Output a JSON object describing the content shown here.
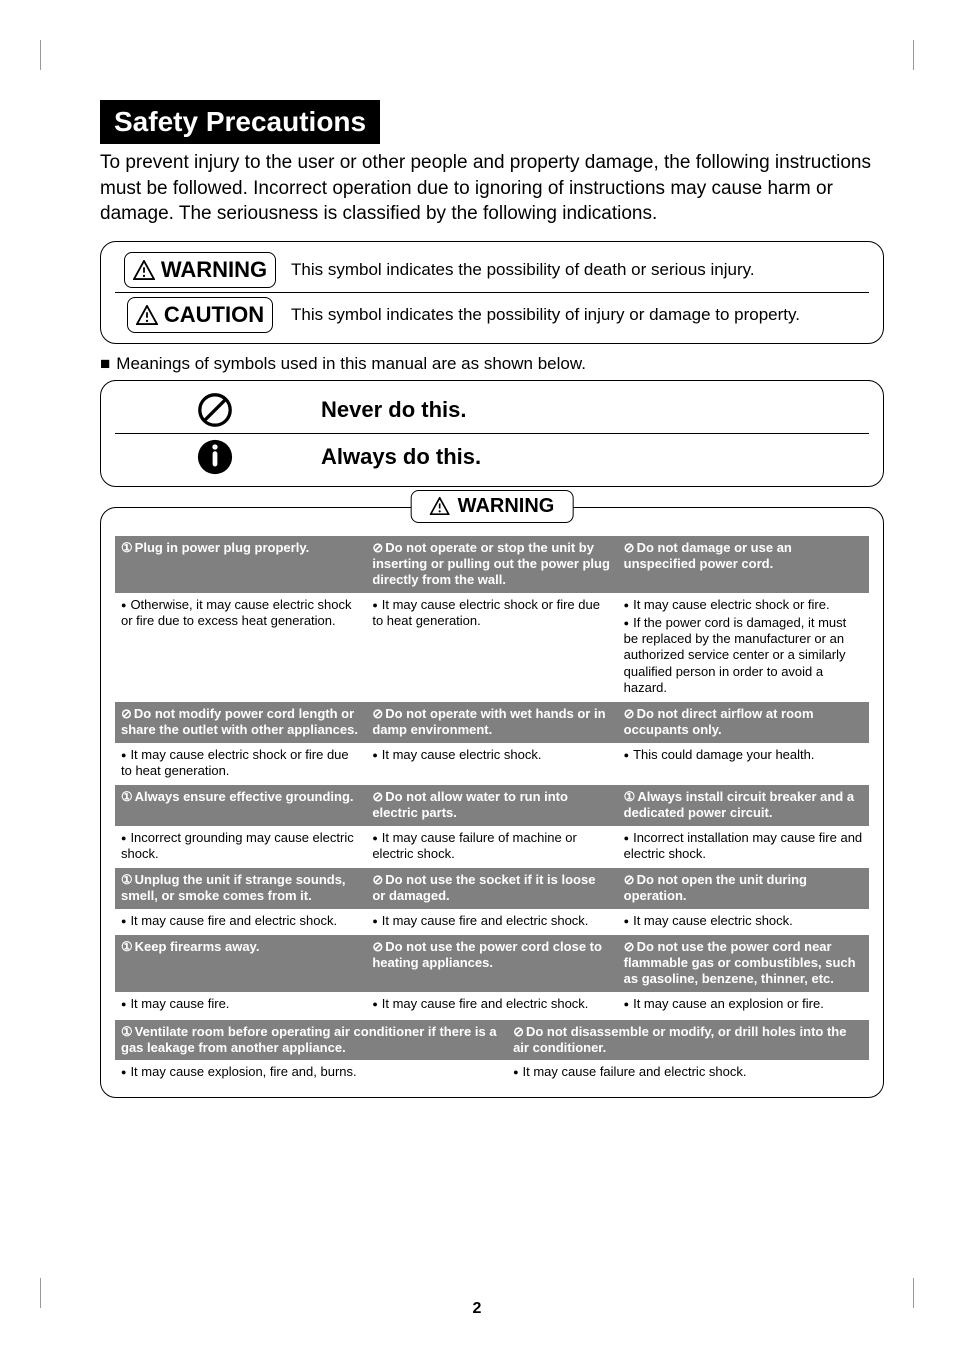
{
  "title": "Safety Precautions",
  "intro": "To prevent injury to the user or other people and property damage, the following instructions must be followed. Incorrect operation due to ignoring of instructions may cause harm or damage. The seriousness is classified by the following indications.",
  "labels": {
    "warning": "WARNING",
    "caution": "CAUTION",
    "warning_desc": "This symbol indicates the possibility of death or serious injury.",
    "caution_desc": "This symbol indicates the possibility of injury or damage to property."
  },
  "meanings": "Meanings of symbols used in this manual are as shown below.",
  "instr": {
    "never": "Never do this.",
    "always": "Always do this."
  },
  "warning_header": "WARNING",
  "prohibit_sym": "⊘",
  "must_sym": "①",
  "rows": [
    {
      "h": [
        "Plug in power plug properly.",
        "Do not operate or stop the unit by inserting or pulling out the power plug directly from the wall.",
        "Do not damage or use an unspecified power cord."
      ],
      "t": [
        "must",
        "prohibit",
        "prohibit"
      ],
      "b": [
        "Otherwise, it may cause electric shock or fire due to excess heat generation.",
        "It may cause electric shock or fire due to heat generation.",
        "It may cause electric shock or fire.|If the power cord is damaged, it must be replaced by the manufacturer or an authorized service center or a similarly qualified person in order to avoid a hazard."
      ]
    },
    {
      "h": [
        "Do not modify power cord length or share the outlet with other appliances.",
        "Do not operate with wet hands or in damp environment.",
        "Do not direct airflow at room occupants only."
      ],
      "t": [
        "prohibit",
        "prohibit",
        "prohibit"
      ],
      "b": [
        "It may cause electric shock or fire due to heat generation.",
        "It may cause electric shock.",
        "This could damage your health."
      ]
    },
    {
      "h": [
        "Always ensure effective grounding.",
        "Do not allow water to run into electric parts.",
        "Always install circuit breaker and a dedicated power circuit."
      ],
      "t": [
        "must",
        "prohibit",
        "must"
      ],
      "b": [
        "Incorrect grounding may cause electric shock.",
        "It may cause failure of machine or electric shock.",
        "Incorrect installation may cause fire and electric shock."
      ]
    },
    {
      "h": [
        "Unplug the unit if strange sounds, smell, or smoke comes from it.",
        "Do not use the socket if it is loose or damaged.",
        "Do not open the unit during operation."
      ],
      "t": [
        "must",
        "prohibit",
        "prohibit"
      ],
      "b": [
        "It may cause fire and electric shock.",
        "It may cause fire and electric shock.",
        "It may cause electric shock."
      ]
    },
    {
      "h": [
        "Keep firearms away.",
        "Do not use the power cord close to heating appliances.",
        "Do not use the power cord near flammable gas or combustibles, such as gasoline, benzene, thinner, etc."
      ],
      "t": [
        "must",
        "prohibit",
        "prohibit"
      ],
      "b": [
        "It may cause fire.",
        "It may cause fire and electric shock.",
        "It may cause an explosion or fire."
      ]
    }
  ],
  "row2": {
    "h": [
      "Ventilate room before operating air conditioner if there is a gas leakage from another appliance.",
      "Do not disassemble or modify, or drill holes into the air conditioner."
    ],
    "t": [
      "must",
      "prohibit"
    ],
    "b": [
      "It may cause explosion, fire and, burns.",
      "It may cause failure and electric shock."
    ]
  },
  "page": "2",
  "colors": {
    "header_bg": "#808080",
    "header_fg": "#ffffff"
  }
}
